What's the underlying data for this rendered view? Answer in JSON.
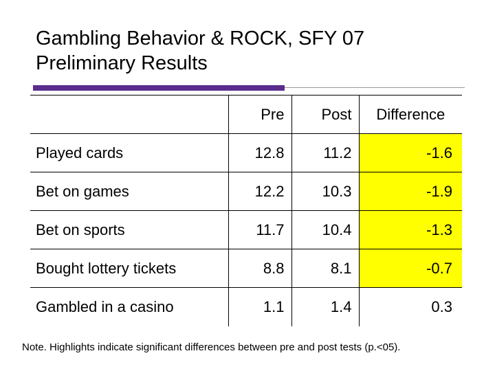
{
  "title": {
    "line1": "Gambling Behavior & ROCK, SFY 07",
    "line2": "Preliminary Results"
  },
  "colors": {
    "accent_rule": "#5b2d8e",
    "highlight": "#ffff00"
  },
  "table": {
    "headers": {
      "label": "",
      "pre": "Pre",
      "post": "Post",
      "difference": "Difference"
    },
    "rows": [
      {
        "label": "Played cards",
        "pre": "12.8",
        "post": "11.2",
        "difference": "-1.6",
        "highlighted": true
      },
      {
        "label": "Bet on games",
        "pre": "12.2",
        "post": "10.3",
        "difference": "-1.9",
        "highlighted": true
      },
      {
        "label": "Bet on sports",
        "pre": "11.7",
        "post": "10.4",
        "difference": "-1.3",
        "highlighted": true
      },
      {
        "label": "Bought lottery tickets",
        "pre": "8.8",
        "post": "8.1",
        "difference": "-0.7",
        "highlighted": true
      },
      {
        "label": "Gambled in a casino",
        "pre": "1.1",
        "post": "1.4",
        "difference": "0.3",
        "highlighted": false
      }
    ]
  },
  "note": "Note. Highlights indicate significant differences between pre and post tests (p.<05)."
}
